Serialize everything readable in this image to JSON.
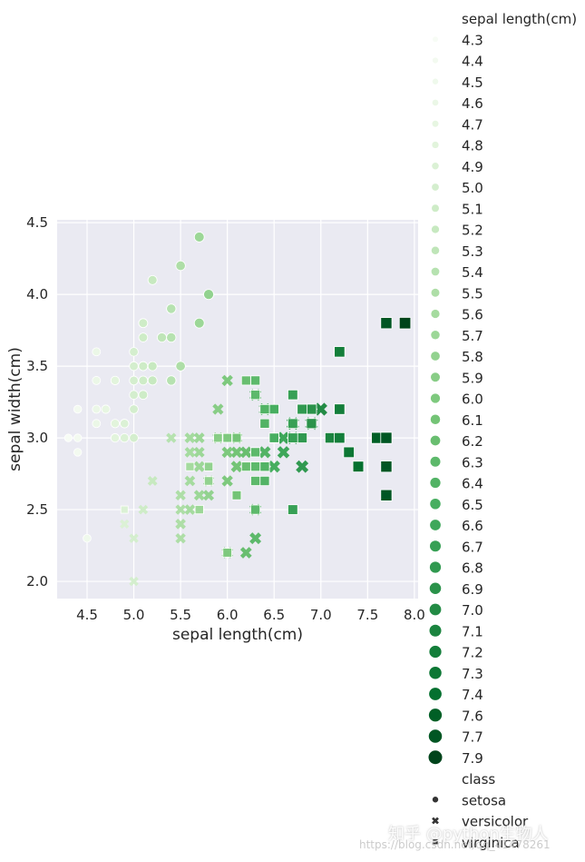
{
  "chart_data": {
    "type": "scatter",
    "xlabel": "sepal length(cm)",
    "ylabel": "sepal width(cm)",
    "xlim": [
      4.18,
      8.04
    ],
    "ylim": [
      1.88,
      4.52
    ],
    "xticks": [
      "4.5",
      "5.0",
      "5.5",
      "6.0",
      "6.5",
      "7.0",
      "7.5",
      "8.0"
    ],
    "yticks": [
      "2.0",
      "2.5",
      "3.0",
      "3.5",
      "4.0",
      "4.5"
    ],
    "grid": true,
    "background": "#eaeaf2",
    "hue": "sepal length(cm)",
    "style": "class",
    "palette": [
      "#f7fcf5",
      "#00441b"
    ],
    "legend_placement": "right",
    "legend": {
      "hue_title": "sepal length(cm)",
      "hue_values": [
        "4.3",
        "4.4",
        "4.5",
        "4.6",
        "4.7",
        "4.8",
        "4.9",
        "5.0",
        "5.1",
        "5.2",
        "5.3",
        "5.4",
        "5.5",
        "5.6",
        "5.7",
        "5.8",
        "5.9",
        "6.0",
        "6.1",
        "6.2",
        "6.3",
        "6.4",
        "6.5",
        "6.6",
        "6.7",
        "6.8",
        "6.9",
        "7.0",
        "7.1",
        "7.2",
        "7.3",
        "7.4",
        "7.6",
        "7.7",
        "7.9"
      ],
      "style_title": "class",
      "style_values": [
        "setosa",
        "versicolor",
        "virginica"
      ]
    },
    "series": [
      {
        "name": "setosa",
        "marker": "circle",
        "points": [
          [
            5.1,
            3.5
          ],
          [
            4.9,
            3.0
          ],
          [
            4.7,
            3.2
          ],
          [
            4.6,
            3.1
          ],
          [
            5.0,
            3.6
          ],
          [
            5.4,
            3.9
          ],
          [
            4.6,
            3.4
          ],
          [
            5.0,
            3.4
          ],
          [
            4.4,
            2.9
          ],
          [
            4.9,
            3.1
          ],
          [
            5.4,
            3.7
          ],
          [
            4.8,
            3.4
          ],
          [
            4.8,
            3.0
          ],
          [
            4.3,
            3.0
          ],
          [
            5.8,
            4.0
          ],
          [
            5.7,
            4.4
          ],
          [
            5.4,
            3.9
          ],
          [
            5.1,
            3.5
          ],
          [
            5.7,
            3.8
          ],
          [
            5.1,
            3.8
          ],
          [
            5.4,
            3.4
          ],
          [
            5.1,
            3.7
          ],
          [
            4.6,
            3.6
          ],
          [
            5.1,
            3.3
          ],
          [
            4.8,
            3.4
          ],
          [
            5.0,
            3.0
          ],
          [
            5.0,
            3.4
          ],
          [
            5.2,
            3.5
          ],
          [
            5.2,
            3.4
          ],
          [
            4.7,
            3.2
          ],
          [
            4.8,
            3.1
          ],
          [
            5.4,
            3.4
          ],
          [
            5.2,
            4.1
          ],
          [
            5.5,
            4.2
          ],
          [
            4.9,
            3.1
          ],
          [
            5.0,
            3.2
          ],
          [
            5.5,
            3.5
          ],
          [
            4.9,
            3.1
          ],
          [
            4.4,
            3.0
          ],
          [
            5.1,
            3.4
          ],
          [
            5.0,
            3.5
          ],
          [
            4.5,
            2.3
          ],
          [
            4.4,
            3.2
          ],
          [
            5.0,
            3.5
          ],
          [
            5.1,
            3.8
          ],
          [
            4.8,
            3.0
          ],
          [
            5.1,
            3.8
          ],
          [
            4.6,
            3.2
          ],
          [
            5.3,
            3.7
          ],
          [
            5.0,
            3.3
          ]
        ]
      },
      {
        "name": "versicolor",
        "marker": "x",
        "points": [
          [
            7.0,
            3.2
          ],
          [
            6.4,
            3.2
          ],
          [
            6.9,
            3.1
          ],
          [
            5.5,
            2.3
          ],
          [
            6.5,
            2.8
          ],
          [
            5.7,
            2.8
          ],
          [
            6.3,
            3.3
          ],
          [
            4.9,
            2.4
          ],
          [
            6.6,
            2.9
          ],
          [
            5.2,
            2.7
          ],
          [
            5.0,
            2.0
          ],
          [
            5.9,
            3.0
          ],
          [
            6.0,
            2.2
          ],
          [
            6.1,
            2.9
          ],
          [
            5.6,
            2.9
          ],
          [
            6.7,
            3.1
          ],
          [
            5.6,
            3.0
          ],
          [
            5.8,
            2.7
          ],
          [
            6.2,
            2.2
          ],
          [
            5.6,
            2.5
          ],
          [
            5.9,
            3.2
          ],
          [
            6.1,
            2.8
          ],
          [
            6.3,
            2.5
          ],
          [
            6.1,
            2.8
          ],
          [
            6.4,
            2.9
          ],
          [
            6.6,
            3.0
          ],
          [
            6.8,
            2.8
          ],
          [
            6.7,
            3.0
          ],
          [
            6.0,
            2.9
          ],
          [
            5.7,
            2.6
          ],
          [
            5.5,
            2.4
          ],
          [
            5.5,
            2.4
          ],
          [
            5.8,
            2.7
          ],
          [
            6.0,
            2.7
          ],
          [
            5.4,
            3.0
          ],
          [
            6.0,
            3.4
          ],
          [
            6.7,
            3.1
          ],
          [
            6.3,
            2.3
          ],
          [
            5.6,
            3.0
          ],
          [
            5.5,
            2.5
          ],
          [
            5.5,
            2.6
          ],
          [
            6.1,
            3.0
          ],
          [
            5.8,
            2.6
          ],
          [
            5.0,
            2.3
          ],
          [
            5.6,
            2.7
          ],
          [
            5.7,
            3.0
          ],
          [
            5.7,
            2.9
          ],
          [
            6.2,
            2.9
          ],
          [
            5.1,
            2.5
          ],
          [
            5.7,
            2.8
          ]
        ]
      },
      {
        "name": "virginica",
        "marker": "square",
        "points": [
          [
            6.3,
            3.3
          ],
          [
            5.8,
            2.7
          ],
          [
            7.1,
            3.0
          ],
          [
            6.3,
            2.9
          ],
          [
            6.5,
            3.0
          ],
          [
            7.6,
            3.0
          ],
          [
            4.9,
            2.5
          ],
          [
            7.3,
            2.9
          ],
          [
            6.7,
            2.5
          ],
          [
            7.2,
            3.6
          ],
          [
            6.5,
            3.2
          ],
          [
            6.4,
            2.7
          ],
          [
            6.8,
            3.0
          ],
          [
            5.7,
            2.5
          ],
          [
            5.8,
            2.8
          ],
          [
            6.4,
            3.2
          ],
          [
            6.5,
            3.0
          ],
          [
            7.7,
            3.8
          ],
          [
            7.7,
            2.6
          ],
          [
            6.0,
            2.2
          ],
          [
            6.9,
            3.2
          ],
          [
            5.6,
            2.8
          ],
          [
            7.7,
            2.8
          ],
          [
            6.3,
            2.7
          ],
          [
            6.7,
            3.3
          ],
          [
            7.2,
            3.2
          ],
          [
            6.2,
            2.8
          ],
          [
            6.1,
            3.0
          ],
          [
            6.4,
            2.8
          ],
          [
            7.2,
            3.0
          ],
          [
            7.4,
            2.8
          ],
          [
            7.9,
            3.8
          ],
          [
            6.4,
            2.8
          ],
          [
            6.3,
            2.8
          ],
          [
            6.1,
            2.6
          ],
          [
            7.7,
            3.0
          ],
          [
            6.3,
            3.4
          ],
          [
            6.4,
            3.1
          ],
          [
            6.0,
            3.0
          ],
          [
            6.9,
            3.1
          ],
          [
            6.7,
            3.1
          ],
          [
            6.9,
            3.1
          ],
          [
            5.8,
            2.7
          ],
          [
            6.8,
            3.2
          ],
          [
            6.7,
            3.3
          ],
          [
            6.7,
            3.0
          ],
          [
            6.3,
            2.5
          ],
          [
            6.5,
            3.0
          ],
          [
            6.2,
            3.4
          ],
          [
            5.9,
            3.0
          ]
        ]
      }
    ]
  },
  "watermark": {
    "text": "知乎 @python生物人",
    "url_text": "https://blog.csdn.net/qq_41478261"
  }
}
